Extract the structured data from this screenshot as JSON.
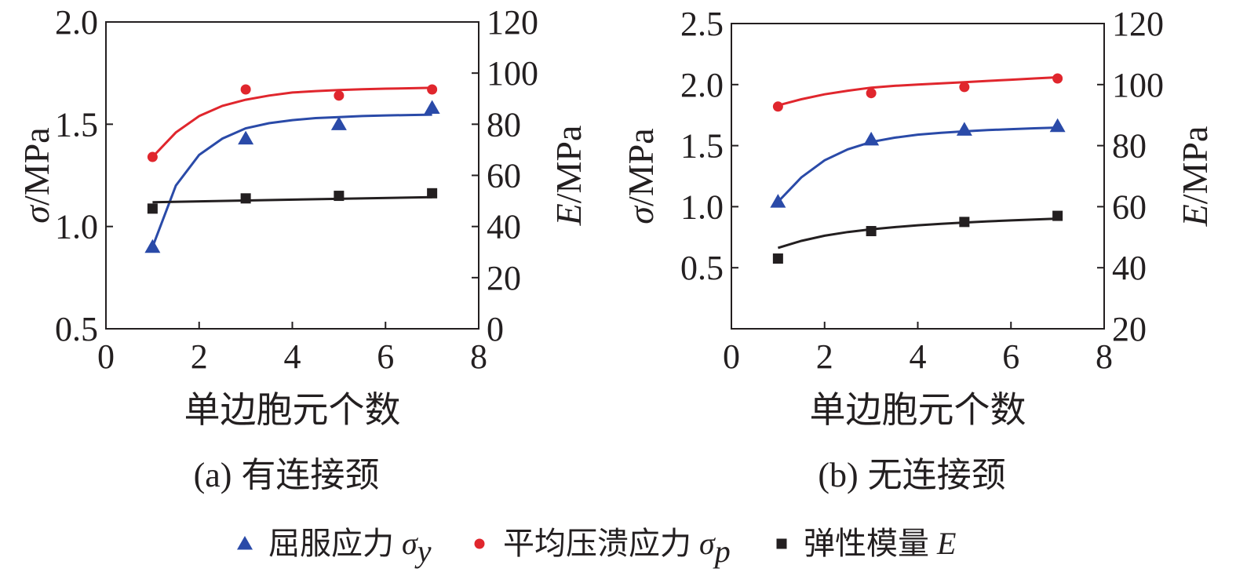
{
  "chart_data": [
    {
      "id": "a",
      "type": "scatter",
      "caption_label": "(a)",
      "caption_text": "有连接颈",
      "xlabel": "单边胞元个数",
      "ylabel_sym": "σ",
      "ylabel_unit": "/MPa",
      "y2label_sym": "E",
      "y2label_unit": "/MPa",
      "xlim": [
        0,
        8
      ],
      "xticks": [
        "0",
        "2",
        "4",
        "6",
        "8"
      ],
      "ylim": [
        0.5,
        2.0
      ],
      "yticks": [
        "0.5",
        "1.0",
        "1.5",
        "2.0"
      ],
      "y2lim": [
        0,
        120
      ],
      "y2ticks": [
        "0",
        "20",
        "40",
        "60",
        "80",
        "100",
        "120"
      ],
      "series": [
        {
          "name": "屈服应力 σy",
          "axis": "left",
          "marker": "triangle",
          "color": "#2a4aa8",
          "x": [
            1,
            3,
            5,
            7
          ],
          "y": [
            0.9,
            1.43,
            1.5,
            1.58
          ],
          "fit_x": [
            1,
            1.5,
            2,
            2.5,
            3,
            3.5,
            4,
            4.5,
            5,
            5.5,
            6,
            6.5,
            7
          ],
          "fit_y": [
            0.9,
            1.2,
            1.35,
            1.43,
            1.48,
            1.505,
            1.52,
            1.53,
            1.535,
            1.54,
            1.543,
            1.545,
            1.547
          ]
        },
        {
          "name": "平均压溃应力 σp",
          "axis": "left",
          "marker": "circle",
          "color": "#e0262d",
          "x": [
            1,
            3,
            5,
            7
          ],
          "y": [
            1.34,
            1.67,
            1.64,
            1.67
          ],
          "fit_x": [
            1,
            1.5,
            2,
            2.5,
            3,
            3.5,
            4,
            4.5,
            5,
            5.5,
            6,
            6.5,
            7
          ],
          "fit_y": [
            1.34,
            1.46,
            1.54,
            1.59,
            1.62,
            1.64,
            1.655,
            1.662,
            1.667,
            1.671,
            1.674,
            1.676,
            1.678
          ]
        },
        {
          "name": "弹性模量 E",
          "axis": "right",
          "marker": "square",
          "color": "#231f20",
          "x": [
            1,
            3,
            5,
            7
          ],
          "y": [
            47,
            51,
            52,
            53
          ],
          "fit_x": [
            1,
            7
          ],
          "fit_y": [
            49.5,
            51.5
          ]
        }
      ]
    },
    {
      "id": "b",
      "type": "scatter",
      "caption_label": "(b)",
      "caption_text": "无连接颈",
      "xlabel": "单边胞元个数",
      "ylabel_sym": "σ",
      "ylabel_unit": "/MPa",
      "y2label_sym": "E",
      "y2label_unit": "/MPa",
      "xlim": [
        0,
        8
      ],
      "xticks": [
        "0",
        "2",
        "4",
        "6",
        "8"
      ],
      "ylim": [
        0,
        2.5
      ],
      "yticks": [
        "0.5",
        "1.0",
        "1.5",
        "2.0",
        "2.5"
      ],
      "y2lim": [
        20,
        120
      ],
      "y2ticks": [
        "20",
        "40",
        "60",
        "80",
        "100",
        "120"
      ],
      "series": [
        {
          "name": "屈服应力 σy",
          "axis": "left",
          "marker": "triangle",
          "color": "#2a4aa8",
          "x": [
            1,
            3,
            5,
            7
          ],
          "y": [
            1.04,
            1.55,
            1.63,
            1.66
          ],
          "fit_x": [
            1,
            1.5,
            2,
            2.5,
            3,
            3.5,
            4,
            4.5,
            5,
            5.5,
            6,
            6.5,
            7
          ],
          "fit_y": [
            1.04,
            1.24,
            1.38,
            1.47,
            1.53,
            1.565,
            1.59,
            1.605,
            1.617,
            1.627,
            1.635,
            1.642,
            1.648
          ]
        },
        {
          "name": "平均压溃应力 σp",
          "axis": "left",
          "marker": "circle",
          "color": "#e0262d",
          "x": [
            1,
            3,
            5,
            7
          ],
          "y": [
            1.82,
            1.93,
            1.98,
            2.05
          ],
          "fit_x": [
            1,
            1.5,
            2,
            2.5,
            3,
            3.5,
            4,
            4.5,
            5,
            5.5,
            6,
            6.5,
            7
          ],
          "fit_y": [
            1.83,
            1.88,
            1.92,
            1.95,
            1.975,
            1.99,
            2.0,
            2.01,
            2.02,
            2.03,
            2.04,
            2.05,
            2.06
          ]
        },
        {
          "name": "弹性模量 E",
          "axis": "right",
          "marker": "square",
          "color": "#231f20",
          "x": [
            1,
            3,
            5,
            7
          ],
          "y": [
            43,
            52,
            55,
            57
          ],
          "fit_x": [
            1,
            1.5,
            2,
            2.5,
            3,
            3.5,
            4,
            4.5,
            5,
            5.5,
            6,
            6.5,
            7
          ],
          "fit_y": [
            46.5,
            48.8,
            50.5,
            51.7,
            52.6,
            53.3,
            53.9,
            54.4,
            54.8,
            55.2,
            55.5,
            55.8,
            56.1
          ]
        }
      ]
    }
  ],
  "legend": {
    "items": [
      {
        "label": "屈服应力",
        "symbol": "σ",
        "sub": "y",
        "marker": "triangle",
        "color": "#2a4aa8"
      },
      {
        "label": "平均压溃应力",
        "symbol": "σ",
        "sub": "p",
        "marker": "circle",
        "color": "#e0262d"
      },
      {
        "label": "弹性模量",
        "symbol": "E",
        "sub": "",
        "marker": "square",
        "color": "#231f20"
      }
    ]
  }
}
